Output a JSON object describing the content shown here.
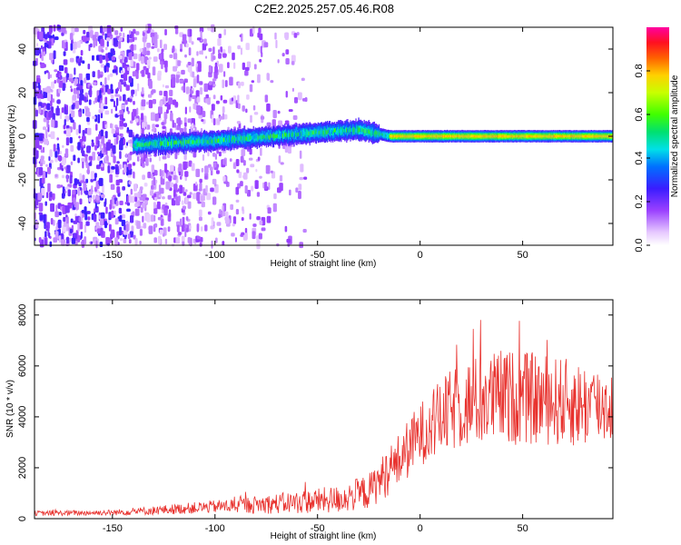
{
  "title": "C2E2.2025.257.05.46.R08",
  "colors": {
    "snr_line": "#e8322e",
    "axis": "#000000",
    "background": "#ffffff"
  },
  "chart_data": [
    {
      "id": "spectrogram",
      "type": "heatmap",
      "xlabel": "Height of straight line (km)",
      "ylabel": "Frequency (Hz)",
      "xlim": [
        -188,
        94
      ],
      "ylim": [
        -50,
        50
      ],
      "xticks": [
        -150,
        -100,
        -50,
        0,
        50
      ],
      "yticks": [
        -40,
        -20,
        0,
        20,
        40
      ],
      "colorbar": {
        "label": "Normalized spectral amplitude",
        "range": [
          0,
          1
        ],
        "ticks": [
          "0.0",
          "0.2",
          "0.4",
          "0.6",
          "0.8"
        ],
        "tick_values": [
          0.0,
          0.2,
          0.4,
          0.6,
          0.8
        ],
        "colormap": "rainbow-white-purple-blue-cyan-green-yellow-red-magenta"
      },
      "features": {
        "noise_region_x": [
          -188,
          -100
        ],
        "signal_onset_x": -140,
        "signal_center_hz": [
          {
            "x": -140,
            "y": -4
          },
          {
            "x": -100,
            "y": -2
          },
          {
            "x": -60,
            "y": 1
          },
          {
            "x": -30,
            "y": 3
          },
          {
            "x": -15,
            "y": 0
          },
          {
            "x": 94,
            "y": 0
          }
        ],
        "strong_signal_x": [
          -15,
          94
        ]
      }
    },
    {
      "id": "snr",
      "type": "line",
      "xlabel": "Height of straight line (km)",
      "ylabel": "SNR (10 * v/v)",
      "xlim": [
        -188,
        94
      ],
      "ylim": [
        0,
        8600
      ],
      "xticks": [
        -150,
        -100,
        -50,
        0,
        50
      ],
      "yticks": [
        0,
        2000,
        4000,
        6000,
        8000
      ],
      "envelope": [
        {
          "x": -188,
          "base": 200,
          "spread": 200
        },
        {
          "x": -150,
          "base": 230,
          "spread": 220
        },
        {
          "x": -130,
          "base": 300,
          "spread": 350
        },
        {
          "x": -100,
          "base": 450,
          "spread": 500
        },
        {
          "x": -70,
          "base": 550,
          "spread": 800
        },
        {
          "x": -40,
          "base": 700,
          "spread": 1100
        },
        {
          "x": -25,
          "base": 1000,
          "spread": 1400
        },
        {
          "x": -10,
          "base": 2200,
          "spread": 2200
        },
        {
          "x": 0,
          "base": 3200,
          "spread": 2500
        },
        {
          "x": 10,
          "base": 3800,
          "spread": 3000
        },
        {
          "x": 20,
          "base": 4300,
          "spread": 3500
        },
        {
          "x": 40,
          "base": 4600,
          "spread": 3800
        },
        {
          "x": 60,
          "base": 4500,
          "spread": 3600
        },
        {
          "x": 80,
          "base": 4300,
          "spread": 3400
        },
        {
          "x": 94,
          "base": 4300,
          "spread": 3000
        }
      ]
    }
  ]
}
